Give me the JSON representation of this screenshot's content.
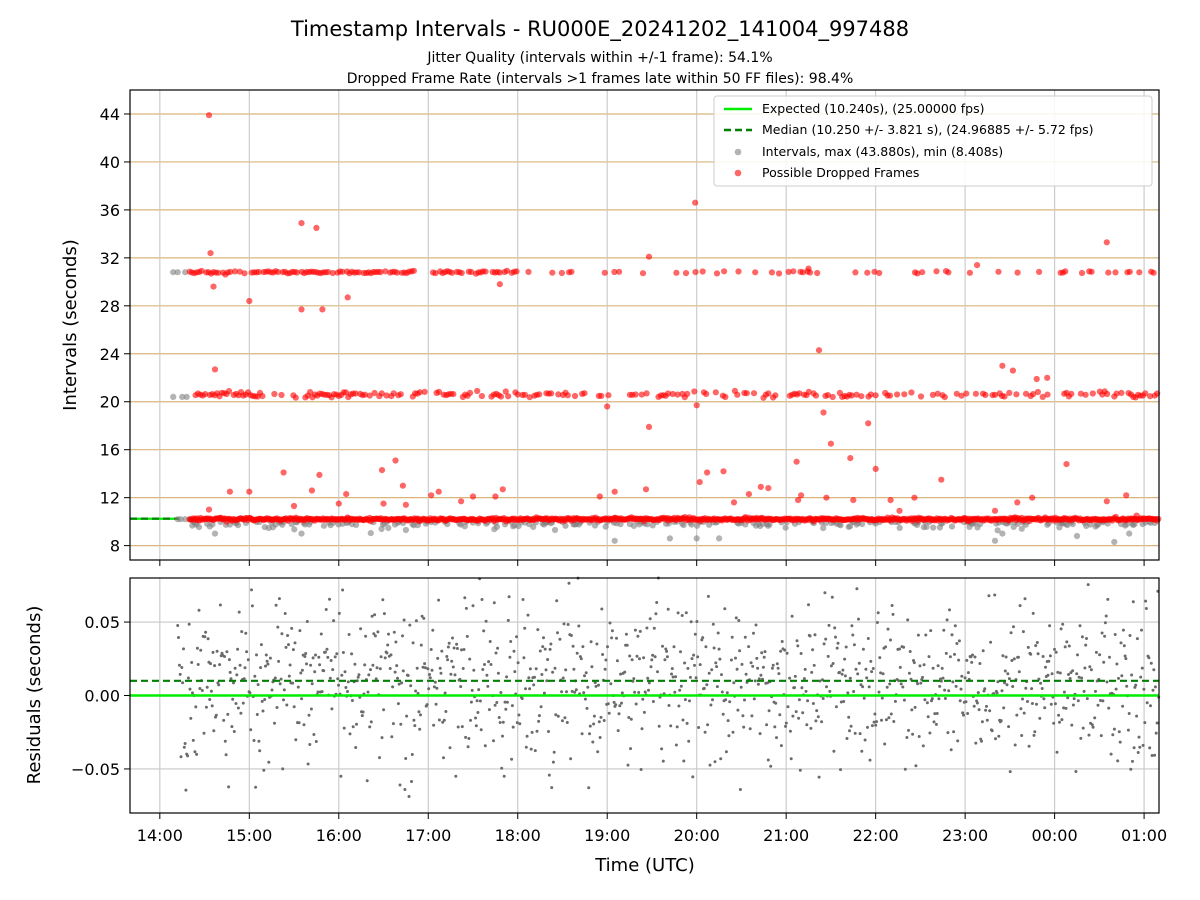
{
  "figure": {
    "title": "Timestamp Intervals - RU000E_20241202_141004_997488",
    "subtitle_1": "Jitter Quality (intervals within +/-1 frame): 54.1%",
    "subtitle_2": "Dropped Frame Rate (intervals >1 frames late within 50 FF files): 98.4%"
  },
  "chart_data": [
    {
      "type": "scatter",
      "ylabel": "Intervals (seconds)",
      "xlabel": "",
      "ylim": [
        6.8,
        46
      ],
      "yticks": [
        8,
        12,
        16,
        20,
        24,
        28,
        32,
        36,
        40,
        44
      ],
      "ytick_labels": [
        "8",
        "12",
        "16",
        "20",
        "24",
        "28",
        "32",
        "36",
        "40",
        "44"
      ],
      "xlim": [
        "13:40",
        "01:10"
      ],
      "xticks": [
        "14:00",
        "15:00",
        "16:00",
        "17:00",
        "18:00",
        "19:00",
        "20:00",
        "21:00",
        "22:00",
        "23:00",
        "00:00",
        "01:00"
      ],
      "grid": "vertical gray lines at time ticks, horizontal tan lines at y ticks",
      "legend_position": "top-right",
      "legend": [
        "Expected (10.240s), (25.00000 fps)",
        "Median (10.250 +/- 3.821 s), (24.96885 +/- 5.72 fps)",
        "Intervals, max (43.880s), min (8.408s)",
        "Possible Dropped Frames"
      ],
      "expected_interval": 10.24,
      "median_interval": 10.25,
      "max_interval": 43.88,
      "min_interval": 8.408,
      "series": [
        {
          "name": "Possible Dropped Frames",
          "bands": [
            10.2,
            20.6,
            30.8
          ],
          "points": [
            [
              "14:33",
              43.9
            ],
            [
              "19:59",
              36.6
            ],
            [
              "15:35",
              34.9
            ],
            [
              "15:45",
              34.5
            ],
            [
              "00:35",
              33.3
            ],
            [
              "19:28",
              32.1
            ],
            [
              "14:34",
              32.4
            ],
            [
              "21:15",
              31.1
            ],
            [
              "23:08",
              31.4
            ],
            [
              "14:36",
              29.6
            ],
            [
              "15:00",
              28.4
            ],
            [
              "16:06",
              28.7
            ],
            [
              "17:48",
              29.8
            ],
            [
              "15:35",
              27.7
            ],
            [
              "15:49",
              27.7
            ],
            [
              "21:22",
              24.3
            ],
            [
              "23:25",
              23.0
            ],
            [
              "23:32",
              22.6
            ],
            [
              "23:48",
              21.9
            ],
            [
              "23:55",
              22.0
            ],
            [
              "14:37",
              22.7
            ],
            [
              "19:00",
              19.6
            ],
            [
              "19:19",
              20.6
            ],
            [
              "20:00",
              19.7
            ],
            [
              "21:25",
              19.1
            ],
            [
              "21:30",
              16.5
            ],
            [
              "21:43",
              15.3
            ],
            [
              "19:28",
              17.9
            ],
            [
              "21:55",
              18.2
            ],
            [
              "22:00",
              14.4
            ],
            [
              "15:23",
              14.1
            ],
            [
              "15:47",
              13.9
            ],
            [
              "16:29",
              14.3
            ],
            [
              "16:38",
              15.1
            ],
            [
              "16:43",
              13.0
            ],
            [
              "20:07",
              14.1
            ],
            [
              "20:18",
              14.2
            ],
            [
              "20:02",
              13.3
            ],
            [
              "21:07",
              15.0
            ],
            [
              "21:45",
              11.8
            ],
            [
              "00:08",
              14.8
            ],
            [
              "14:33",
              11.0
            ],
            [
              "14:47",
              12.5
            ],
            [
              "15:00",
              12.5
            ],
            [
              "15:30",
              11.3
            ],
            [
              "15:42",
              12.6
            ],
            [
              "16:00",
              11.5
            ],
            [
              "16:05",
              12.3
            ],
            [
              "16:30",
              11.5
            ],
            [
              "16:45",
              11.4
            ],
            [
              "17:02",
              12.2
            ],
            [
              "17:07",
              12.5
            ],
            [
              "17:22",
              11.7
            ],
            [
              "17:30",
              12.1
            ],
            [
              "17:45",
              12.1
            ],
            [
              "17:50",
              12.7
            ],
            [
              "18:55",
              12.1
            ],
            [
              "19:05",
              12.5
            ],
            [
              "19:26",
              12.7
            ],
            [
              "20:25",
              11.6
            ],
            [
              "20:35",
              12.3
            ],
            [
              "20:43",
              12.9
            ],
            [
              "20:48",
              12.8
            ],
            [
              "21:10",
              12.2
            ],
            [
              "21:08",
              11.8
            ],
            [
              "21:27",
              12.0
            ],
            [
              "22:10",
              11.8
            ],
            [
              "22:16",
              10.9
            ],
            [
              "22:26",
              12.0
            ],
            [
              "22:44",
              13.5
            ],
            [
              "23:20",
              10.9
            ],
            [
              "23:35",
              11.6
            ],
            [
              "23:45",
              12.0
            ],
            [
              "00:35",
              11.7
            ],
            [
              "00:48",
              12.2
            ],
            [
              "00:55",
              10.5
            ]
          ]
        },
        {
          "name": "Intervals, max (43.880s), min (8.408s)",
          "points": [
            [
              "14:09",
              30.8
            ],
            [
              "14:12",
              30.8
            ],
            [
              "14:17",
              30.8
            ],
            [
              "14:09",
              20.4
            ],
            [
              "14:15",
              20.4
            ],
            [
              "14:18",
              20.4
            ],
            [
              "14:12",
              10.2
            ],
            [
              "14:14",
              10.2
            ],
            [
              "14:17",
              10.2
            ],
            [
              "14:20",
              10.2
            ],
            [
              "14:37",
              9.0
            ],
            [
              "15:35",
              9.0
            ],
            [
              "19:05",
              8.4
            ],
            [
              "19:42",
              8.6
            ],
            [
              "20:00",
              8.6
            ],
            [
              "20:15",
              8.6
            ],
            [
              "23:20",
              8.4
            ],
            [
              "23:25",
              9.0
            ],
            [
              "00:15",
              8.8
            ],
            [
              "00:40",
              8.3
            ],
            [
              "00:50",
              9.0
            ],
            [
              "16:45",
              9.3
            ],
            [
              "18:25",
              9.3
            ]
          ]
        }
      ]
    },
    {
      "type": "scatter",
      "ylabel": "Residuals (seconds)",
      "xlabel": "Time (UTC)",
      "ylim": [
        -0.08,
        0.08
      ],
      "yticks": [
        0.05,
        0.0,
        -0.05
      ],
      "ytick_labels": [
        "0.05",
        "0.00",
        "−0.05"
      ],
      "xlim": [
        "13:40",
        "01:10"
      ],
      "xticks": [
        "14:00",
        "15:00",
        "16:00",
        "17:00",
        "18:00",
        "19:00",
        "20:00",
        "21:00",
        "22:00",
        "23:00",
        "00:00",
        "01:00"
      ],
      "grid": true,
      "expected_residual": 0.0,
      "median_residual": 0.01,
      "residual_spread": "gray points scattered between -0.08 and 0.08, densest near 0.01"
    }
  ],
  "colors": {
    "expected_line": "#00ee00",
    "median_line": "#007f00",
    "intervals": "#808080",
    "dropped": "#ff0000",
    "hgrid_top": "#d9b57a",
    "grid": "#c8c8c8",
    "residual_points": "#6b6b6b"
  }
}
